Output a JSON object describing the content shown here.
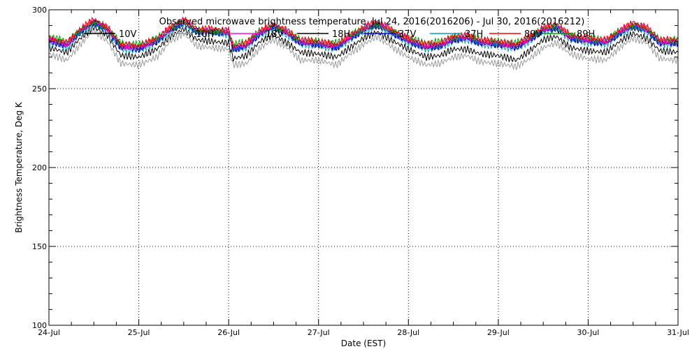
{
  "chart_data": {
    "type": "line",
    "title": "Observed microwave brightness temperature, Jul 24, 2016(2016206) - Jul 30, 2016(2016212)",
    "xlabel": "Date (EST)",
    "ylabel": "Brightness Temperature, Deg K",
    "xlim": [
      "2016-07-24",
      "2016-07-31"
    ],
    "ylim": [
      100,
      300
    ],
    "x_ticks": [
      "24-Jul",
      "25-Jul",
      "26-Jul",
      "27-Jul",
      "28-Jul",
      "29-Jul",
      "30-Jul",
      "31-Jul"
    ],
    "y_ticks": [
      100,
      150,
      200,
      250,
      300
    ],
    "grid": true,
    "legend": "top, inside plot",
    "x_days": [
      0.0,
      0.2,
      0.35,
      0.5,
      0.65,
      0.8,
      1.0,
      1.2,
      1.35,
      1.5,
      1.65,
      1.8,
      2.0,
      2.05,
      2.2,
      2.35,
      2.5,
      2.65,
      2.8,
      3.0,
      3.2,
      3.35,
      3.5,
      3.65,
      3.8,
      4.0,
      4.2,
      4.35,
      4.5,
      4.65,
      4.8,
      5.0,
      5.2,
      5.35,
      5.5,
      5.65,
      5.8,
      6.0,
      6.2,
      6.35,
      6.5,
      6.65,
      6.8,
      7.0
    ],
    "series": [
      {
        "name": "10V",
        "color": "#000000",
        "values": [
          281,
          278,
          286,
          292,
          288,
          277,
          276,
          280,
          287,
          291,
          286,
          286,
          285,
          275,
          277,
          285,
          289,
          285,
          279,
          278,
          276,
          282,
          287,
          290,
          286,
          280,
          276,
          277,
          281,
          282,
          279,
          278,
          277,
          281,
          287,
          288,
          282,
          280,
          279,
          285,
          289,
          287,
          279,
          279
        ]
      },
      {
        "name": "10H",
        "color": "#9a9a9a",
        "values": [
          272,
          268,
          278,
          287,
          280,
          266,
          265,
          270,
          280,
          285,
          277,
          276,
          275,
          265,
          266,
          276,
          281,
          276,
          268,
          268,
          265,
          272,
          278,
          283,
          277,
          270,
          265,
          266,
          270,
          271,
          267,
          266,
          264,
          269,
          276,
          279,
          272,
          269,
          268,
          276,
          282,
          279,
          269,
          268
        ]
      },
      {
        "name": "18V",
        "color": "#ff00ff",
        "values": [
          281,
          278,
          287,
          293,
          288,
          277,
          276,
          281,
          288,
          293,
          287,
          287,
          286,
          276,
          278,
          286,
          290,
          286,
          280,
          279,
          277,
          283,
          288,
          292,
          287,
          281,
          277,
          278,
          282,
          283,
          280,
          279,
          277,
          282,
          288,
          290,
          283,
          281,
          280,
          286,
          291,
          288,
          280,
          280
        ]
      },
      {
        "name": "18H",
        "color": "#000000",
        "values": [
          276,
          273,
          282,
          289,
          284,
          271,
          270,
          275,
          283,
          288,
          281,
          280,
          279,
          269,
          271,
          280,
          284,
          279,
          273,
          272,
          270,
          276,
          282,
          286,
          281,
          275,
          270,
          271,
          275,
          275,
          272,
          271,
          268,
          274,
          281,
          283,
          276,
          274,
          273,
          280,
          285,
          282,
          274,
          273
        ]
      },
      {
        "name": "37V",
        "color": "#0000ff",
        "values": [
          280,
          277,
          286,
          292,
          287,
          276,
          275,
          280,
          287,
          292,
          286,
          286,
          285,
          275,
          277,
          285,
          289,
          285,
          279,
          278,
          276,
          282,
          287,
          291,
          286,
          280,
          276,
          277,
          281,
          282,
          279,
          278,
          276,
          281,
          287,
          289,
          282,
          280,
          279,
          285,
          290,
          287,
          279,
          279
        ]
      },
      {
        "name": "37H",
        "color": "#00a0c0",
        "values": [
          279,
          276,
          285,
          291,
          286,
          275,
          274,
          279,
          286,
          291,
          285,
          285,
          284,
          274,
          276,
          284,
          288,
          284,
          278,
          277,
          275,
          281,
          286,
          290,
          285,
          279,
          275,
          276,
          280,
          281,
          278,
          277,
          275,
          280,
          286,
          288,
          281,
          279,
          278,
          284,
          289,
          286,
          278,
          278
        ]
      },
      {
        "name": "89V",
        "color": "#ff0000",
        "values": [
          282,
          279,
          288,
          294,
          289,
          278,
          277,
          282,
          289,
          294,
          288,
          288,
          287,
          277,
          279,
          287,
          291,
          287,
          281,
          280,
          278,
          284,
          289,
          293,
          288,
          282,
          278,
          279,
          283,
          284,
          281,
          280,
          278,
          283,
          289,
          291,
          284,
          282,
          281,
          287,
          292,
          289,
          281,
          281
        ]
      },
      {
        "name": "89H",
        "color": "#00a000",
        "values": [
          283,
          280,
          287,
          292,
          288,
          279,
          278,
          282,
          288,
          292,
          287,
          287,
          286,
          278,
          280,
          287,
          290,
          286,
          281,
          280,
          279,
          284,
          288,
          291,
          287,
          282,
          279,
          280,
          283,
          284,
          281,
          280,
          279,
          283,
          288,
          290,
          284,
          282,
          281,
          287,
          290,
          288,
          281,
          281
        ]
      }
    ]
  }
}
